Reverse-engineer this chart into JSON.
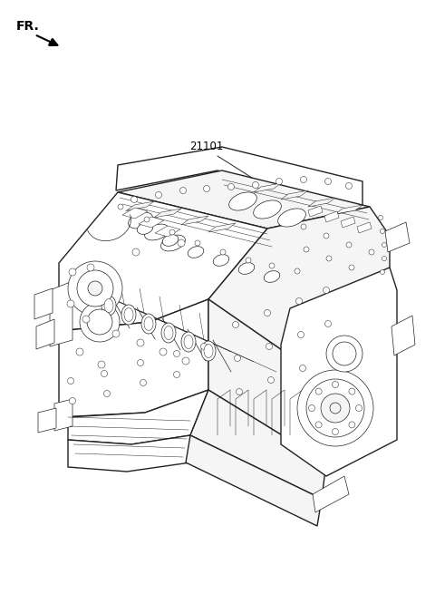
{
  "background_color": "#ffffff",
  "fr_text": "FR.",
  "fr_fontsize": 10,
  "part_number": "21101",
  "part_number_fontsize": 8.5,
  "fig_width": 4.8,
  "fig_height": 6.55,
  "dpi": 100,
  "lw_outer": 1.0,
  "lw_inner": 0.5,
  "lw_detail": 0.35,
  "ec": "#222222",
  "fc_white": "#ffffff",
  "fc_light": "#f5f5f5"
}
